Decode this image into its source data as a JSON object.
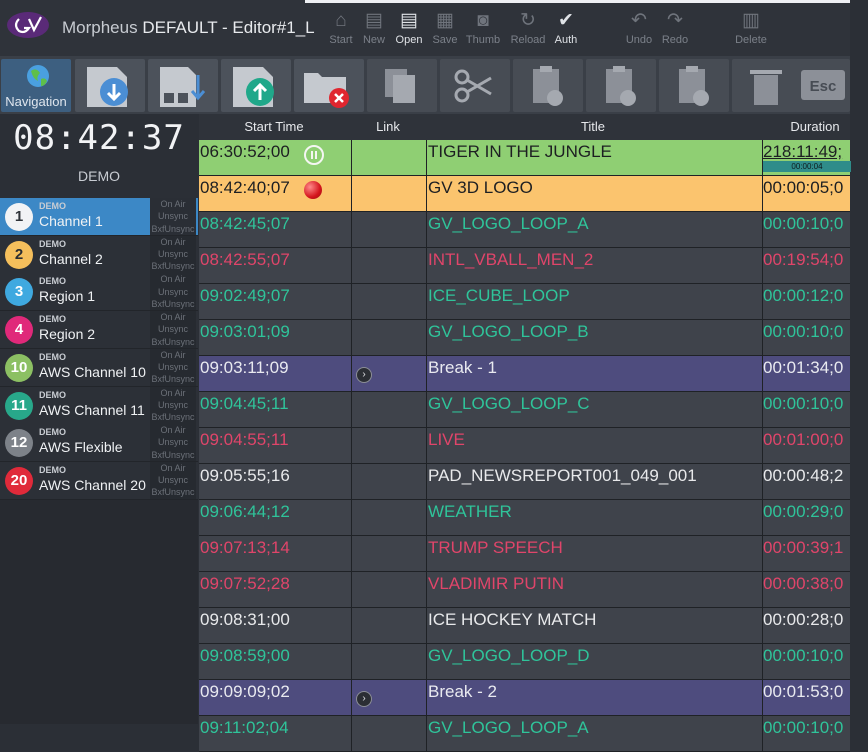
{
  "window": {
    "app_name": "Morpheus",
    "document_title": "DEFAULT - Editor#1_L"
  },
  "title_actions": [
    {
      "label": "Start",
      "icon": "home-icon",
      "glyph": "⌂",
      "active": false
    },
    {
      "label": "New",
      "icon": "new-list-icon",
      "glyph": "▤",
      "active": false
    },
    {
      "label": "Open",
      "icon": "open-list-icon",
      "glyph": "▤",
      "active": true
    },
    {
      "label": "Save",
      "icon": "save-icon",
      "glyph": "▦",
      "active": false
    },
    {
      "label": "Thumb",
      "icon": "camera-icon",
      "glyph": "◙",
      "active": false
    },
    {
      "label": "Reload",
      "icon": "reload-icon",
      "glyph": "↻",
      "active": false
    },
    {
      "label": "Auth",
      "icon": "shield-check-icon",
      "glyph": "✔",
      "active": true
    },
    {
      "label": "Undo",
      "icon": "undo-icon",
      "glyph": "↶",
      "active": false
    },
    {
      "label": "Redo",
      "icon": "redo-icon",
      "glyph": "↷",
      "active": false
    },
    {
      "label": "Delete",
      "icon": "trash-icon",
      "glyph": "▥",
      "active": false
    }
  ],
  "toolbar": {
    "navigation_label": "Navigation",
    "esc_label": "Esc"
  },
  "clock": "08:42:37",
  "server_label": "DEMO",
  "channel_status_labels": [
    "On Air",
    "Unsync",
    "BxfUnsync"
  ],
  "channels": [
    {
      "number": "1",
      "demo": "DEMO",
      "name": "Channel 1",
      "color": "#f2f3f5",
      "text_color": "#30343a",
      "selected": true
    },
    {
      "number": "2",
      "demo": "DEMO",
      "name": "Channel 2",
      "color": "#f5bf5c",
      "text_color": "#2a2d31",
      "selected": false
    },
    {
      "number": "3",
      "demo": "DEMO",
      "name": "Region 1",
      "color": "#3fa9e0",
      "text_color": "#ffffff",
      "selected": false
    },
    {
      "number": "4",
      "demo": "DEMO",
      "name": "Region 2",
      "color": "#e0297a",
      "text_color": "#ffffff",
      "selected": false
    },
    {
      "number": "10",
      "demo": "DEMO",
      "name": "AWS Channel 10",
      "color": "#8cc063",
      "text_color": "#ffffff",
      "selected": false
    },
    {
      "number": "11",
      "demo": "DEMO",
      "name": "AWS Channel 11",
      "color": "#28a88a",
      "text_color": "#ffffff",
      "selected": false
    },
    {
      "number": "12",
      "demo": "DEMO",
      "name": "AWS Flexible",
      "color": "#7d8289",
      "text_color": "#ffffff",
      "selected": false
    },
    {
      "number": "20",
      "demo": "DEMO",
      "name": "AWS Channel 20",
      "color": "#e02a3a",
      "text_color": "#ffffff",
      "selected": false
    }
  ],
  "grid": {
    "columns": [
      "Start Time",
      "Link",
      "Title",
      "Duration"
    ],
    "rows": [
      {
        "start": "06:30:52;00",
        "title": "TIGER IN THE JUNGLE",
        "duration": "218:11:49;",
        "style": "green",
        "marker": "pause",
        "progress_label": "00:00:04",
        "link": false
      },
      {
        "start": "08:42:40;07",
        "title": "GV 3D LOGO",
        "duration": "00:00:05;0",
        "style": "orange",
        "marker": "onair",
        "link": false
      },
      {
        "start": "08:42:45;07",
        "title": "GV_LOGO_LOOP_A",
        "duration": "00:00:10;0",
        "style": "teal",
        "link": false
      },
      {
        "start": "08:42:55;07",
        "title": "INTL_VBALL_MEN_2",
        "duration": "00:19:54;0",
        "style": "red",
        "link": false
      },
      {
        "start": "09:02:49;07",
        "title": "ICE_CUBE_LOOP",
        "duration": "00:00:12;0",
        "style": "teal",
        "link": false
      },
      {
        "start": "09:03:01;09",
        "title": "GV_LOGO_LOOP_B",
        "duration": "00:00:10;0",
        "style": "teal",
        "link": false
      },
      {
        "start": "09:03:11;09",
        "title": "Break - 1",
        "duration": "00:01:34;0",
        "style": "purple",
        "link": true
      },
      {
        "start": "09:04:45;11",
        "title": "GV_LOGO_LOOP_C",
        "duration": "00:00:10;0",
        "style": "teal",
        "link": false
      },
      {
        "start": "09:04:55;11",
        "title": "LIVE",
        "duration": "00:01:00;0",
        "style": "red",
        "link": false
      },
      {
        "start": "09:05:55;16",
        "title": "PAD_NEWSREPORT001_049_001",
        "duration": "00:00:48;2",
        "style": "default",
        "link": false
      },
      {
        "start": "09:06:44;12",
        "title": "WEATHER",
        "duration": "00:00:29;0",
        "style": "teal",
        "link": false
      },
      {
        "start": "09:07:13;14",
        "title": "TRUMP SPEECH",
        "duration": "00:00:39;1",
        "style": "red",
        "link": false
      },
      {
        "start": "09:07:52;28",
        "title": "VLADIMIR PUTIN",
        "duration": "00:00:38;0",
        "style": "red",
        "link": false
      },
      {
        "start": "09:08:31;00",
        "title": "ICE HOCKEY MATCH",
        "duration": "00:00:28;0",
        "style": "default",
        "link": false
      },
      {
        "start": "09:08:59;00",
        "title": "GV_LOGO_LOOP_D",
        "duration": "00:00:10;0",
        "style": "teal",
        "link": false
      },
      {
        "start": "09:09:09;02",
        "title": "Break - 2",
        "duration": "00:01:53;0",
        "style": "purple",
        "link": true
      },
      {
        "start": "09:11:02;04",
        "title": "GV_LOGO_LOOP_A",
        "duration": "00:00:10;0",
        "style": "teal",
        "link": false
      }
    ]
  }
}
